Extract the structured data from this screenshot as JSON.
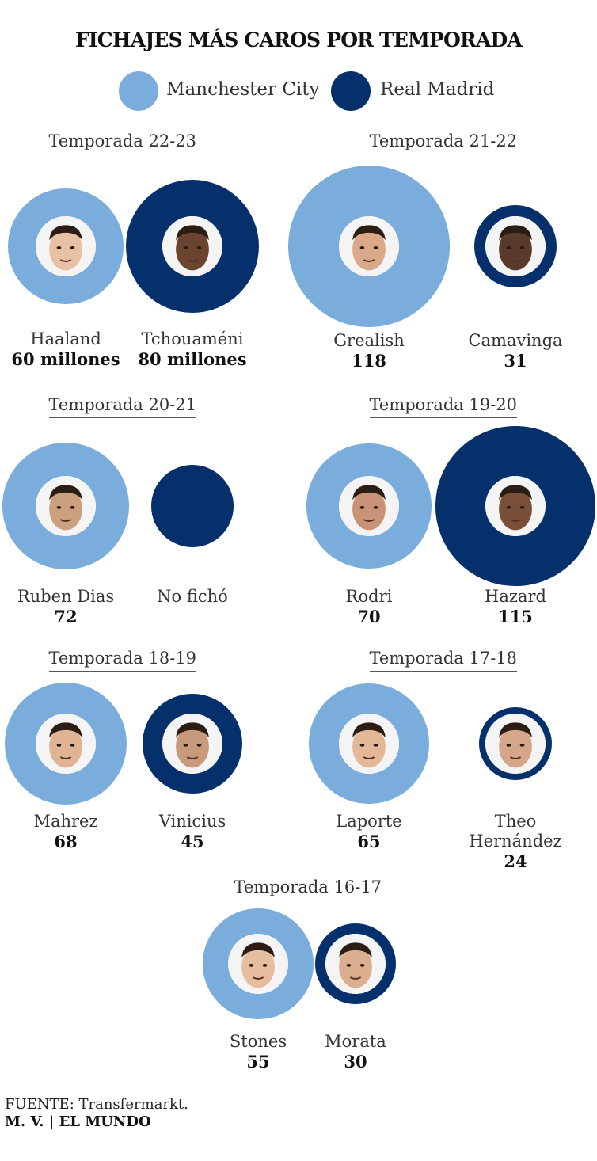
{
  "title": "FICHAJES MÁS CAROS POR TEMPORADA",
  "legend": [
    {
      "label": "Manchester City",
      "color": "#7aacdc"
    },
    {
      "label": "Real Madrid",
      "color": "#06306b"
    }
  ],
  "source_label": "FUENTE:",
  "source_text": "Transfermarkt.",
  "credit": "M. V. | EL MUNDO",
  "chart_data": {
    "type": "bubble",
    "title": "FICHAJES MÁS CAROS POR TEMPORADA",
    "unit": "millones",
    "series": [
      {
        "name": "Manchester City",
        "color": "#7aacdc"
      },
      {
        "name": "Real Madrid",
        "color": "#06306b"
      }
    ],
    "seasons": [
      {
        "label": "Temporada 22-23",
        "city": {
          "player": "Haaland",
          "value": 60,
          "value_label": "60 millones"
        },
        "madrid": {
          "player": "Tchouaméni",
          "value": 80,
          "value_label": "80 millones"
        }
      },
      {
        "label": "Temporada 21-22",
        "city": {
          "player": "Grealish",
          "value": 118,
          "value_label": "118"
        },
        "madrid": {
          "player": "Camavinga",
          "value": 31,
          "value_label": "31"
        }
      },
      {
        "label": "Temporada 20-21",
        "city": {
          "player": "Ruben Dias",
          "value": 72,
          "value_label": "72"
        },
        "madrid": {
          "player": "No fichó",
          "value": null,
          "value_label": ""
        }
      },
      {
        "label": "Temporada 19-20",
        "city": {
          "player": "Rodri",
          "value": 70,
          "value_label": "70"
        },
        "madrid": {
          "player": "Hazard",
          "value": 115,
          "value_label": "115"
        }
      },
      {
        "label": "Temporada 18-19",
        "city": {
          "player": "Mahrez",
          "value": 68,
          "value_label": "68"
        },
        "madrid": {
          "player": "Vinicius",
          "value": 45,
          "value_label": "45"
        }
      },
      {
        "label": "Temporada 17-18",
        "city": {
          "player": "Laporte",
          "value": 65,
          "value_label": "65"
        },
        "madrid": {
          "player": "Theo Hernández",
          "value": 24,
          "value_label": "24"
        }
      },
      {
        "label": "Temporada 16-17",
        "city": {
          "player": "Stones",
          "value": 55,
          "value_label": "55"
        },
        "madrid": {
          "player": "Morata",
          "value": 30,
          "value_label": "30"
        }
      }
    ]
  }
}
